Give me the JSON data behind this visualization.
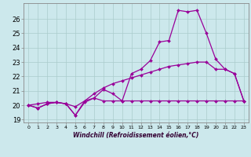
{
  "xlabel": "Windchill (Refroidissement éolien,°C)",
  "background_color": "#cce8ec",
  "grid_color": "#aacccc",
  "line_color": "#990099",
  "hours": [
    0,
    1,
    2,
    3,
    4,
    5,
    6,
    7,
    8,
    9,
    10,
    11,
    12,
    13,
    14,
    15,
    16,
    17,
    18,
    19,
    20,
    21,
    22,
    23
  ],
  "line1_peak": [
    20.0,
    19.8,
    20.1,
    20.2,
    20.1,
    19.3,
    20.3,
    20.5,
    21.1,
    20.8,
    20.3,
    22.2,
    22.5,
    23.1,
    24.4,
    24.5,
    26.6,
    26.5,
    26.6,
    25.0,
    23.2,
    22.5,
    22.2,
    20.3
  ],
  "line2_mid": [
    20.0,
    20.1,
    20.2,
    20.2,
    20.1,
    19.9,
    20.3,
    20.8,
    21.2,
    21.5,
    21.7,
    21.9,
    22.1,
    22.3,
    22.5,
    22.7,
    22.8,
    22.9,
    23.0,
    23.0,
    22.5,
    22.5,
    22.2,
    20.3
  ],
  "line3_flat": [
    20.0,
    19.8,
    20.1,
    20.2,
    20.1,
    19.3,
    20.2,
    20.5,
    20.3,
    20.3,
    20.3,
    20.3,
    20.3,
    20.3,
    20.3,
    20.3,
    20.3,
    20.3,
    20.3,
    20.3,
    20.3,
    20.3,
    20.3,
    20.3
  ],
  "ylim": [
    18.8,
    27.1
  ],
  "yticks": [
    19,
    20,
    21,
    22,
    23,
    24,
    25,
    26
  ],
  "markersize": 2.0,
  "linewidth": 0.9
}
